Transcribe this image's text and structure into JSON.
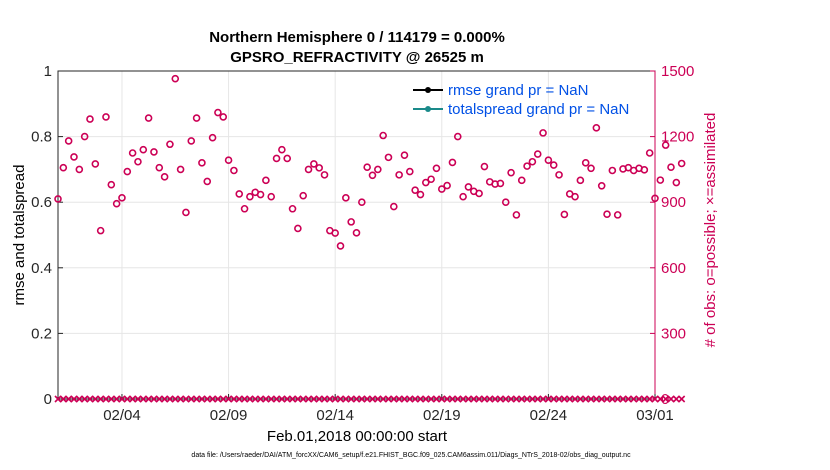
{
  "chart_data": {
    "type": "scatter",
    "title_line1": "Northern Hemisphere 0 / 114179 = 0.000%",
    "title_line2": "GPSRO_REFRACTIVITY @ 26525 m",
    "ylabel_left": "rmse and totalspread",
    "ylabel_right": "# of obs: o=possible; ×=assimilated",
    "xlabel": "Feb.01,2018 00:00:00 start",
    "footer": "data file: /Users/raeder/DAI/ATM_forcXX/CAM6_setup/f.e21.FHIST_BGC.f09_025.CAM6assim.011/Diags_NTrS_2018-02/obs_diag_output.nc",
    "ylim_left": [
      0,
      1
    ],
    "ylim_right": [
      0,
      1500
    ],
    "xlim": [
      0,
      28
    ],
    "left_ticks": [
      {
        "value": 0,
        "label": "0"
      },
      {
        "value": 0.2,
        "label": "0.2"
      },
      {
        "value": 0.4,
        "label": "0.4"
      },
      {
        "value": 0.6,
        "label": "0.6"
      },
      {
        "value": 0.8,
        "label": "0.8"
      },
      {
        "value": 1,
        "label": "1"
      }
    ],
    "right_ticks": [
      {
        "value": 0,
        "label": "0"
      },
      {
        "value": 300,
        "label": "300"
      },
      {
        "value": 600,
        "label": "600"
      },
      {
        "value": 900,
        "label": "900"
      },
      {
        "value": 1200,
        "label": "1200"
      },
      {
        "value": 1500,
        "label": "1500"
      }
    ],
    "x_ticks": [
      {
        "value": 3,
        "label": "02/04"
      },
      {
        "value": 8,
        "label": "02/09"
      },
      {
        "value": 13,
        "label": "02/14"
      },
      {
        "value": 18,
        "label": "02/19"
      },
      {
        "value": 23,
        "label": "02/24"
      },
      {
        "value": 28,
        "label": "03/01"
      }
    ],
    "legend": [
      {
        "label": "rmse grand pr = NaN",
        "color": "#000000",
        "marker": "dot"
      },
      {
        "label": "totalspread grand pr = NaN",
        "color": "#1a8a8a",
        "marker": "dot"
      }
    ],
    "legend_text_color": "#0050e6",
    "grid": true,
    "colors": {
      "possible": "#cc0055",
      "assimilated": "#cc0055",
      "axis": "#262626",
      "grid": "#e6e6e6"
    },
    "series": [
      {
        "name": "o=possible",
        "marker": "circle",
        "x_start": 0,
        "x_step": 0.25,
        "values": [
          915,
          1058,
          1180,
          1107,
          1050,
          1200,
          1280,
          1075,
          770,
          1290,
          980,
          893,
          920,
          1040,
          1125,
          1085,
          1140,
          1285,
          1130,
          1058,
          1016,
          1165,
          1465,
          1050,
          853,
          1180,
          1285,
          1080,
          995,
          1195,
          1310,
          1290,
          1092,
          1045,
          938,
          870,
          925,
          945,
          935,
          1000,
          925,
          1100,
          1140,
          1100,
          870,
          780,
          930,
          1050,
          1075,
          1057,
          1025,
          770,
          759,
          700,
          920,
          810,
          760,
          900,
          1060,
          1023,
          1050,
          1205,
          1105,
          880,
          1025,
          1115,
          1040,
          955,
          935,
          990,
          1005,
          1055,
          960,
          976,
          1082,
          1200,
          925,
          970,
          950,
          940,
          1063,
          993,
          983,
          986,
          900,
          1035,
          842,
          1000,
          1065,
          1085,
          1120,
          1217,
          1092,
          1070,
          1025,
          844,
          938,
          925,
          1000,
          1080,
          1055,
          1240,
          975,
          845,
          1045,
          842,
          1052,
          1058,
          1045,
          1055,
          1048,
          1125,
          918,
          1001,
          1161,
          1060,
          990,
          1077
        ]
      }
    ]
  }
}
